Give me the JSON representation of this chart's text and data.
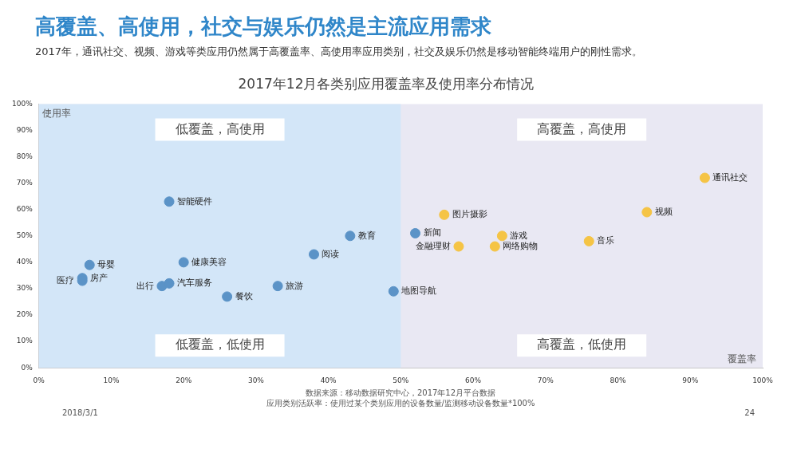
{
  "chart_data": {
    "type": "scatter",
    "title": "高覆盖、高使用，社交与娱乐仍然是主流应用需求",
    "subtitle": "2017年，通讯社交、视频、游戏等类应用仍然属于高覆盖率、高使用率应用类别，社交及娱乐仍然是移动智能终端用户的刚性需求。",
    "xlabel": "覆盖率",
    "ylabel": "使用率",
    "marker": "circle",
    "grid": false,
    "legend": false,
    "xlim": [
      0,
      100
    ],
    "ylim": [
      0,
      100
    ],
    "xticks": [
      {
        "value": 0,
        "label": "0%"
      },
      {
        "value": 10,
        "label": "10%"
      },
      {
        "value": 20,
        "label": "20%"
      },
      {
        "value": 30,
        "label": "30%"
      },
      {
        "value": 40,
        "label": "40%"
      },
      {
        "value": 50,
        "label": "50%"
      },
      {
        "value": 60,
        "label": "60%"
      },
      {
        "value": 70,
        "label": "70%"
      },
      {
        "value": 80,
        "label": "80%"
      },
      {
        "value": 90,
        "label": "90%"
      },
      {
        "value": 100,
        "label": "100%"
      }
    ],
    "yticks": [
      {
        "value": 0,
        "label": "0%"
      },
      {
        "value": 10,
        "label": "10%"
      },
      {
        "value": 20,
        "label": "20%"
      },
      {
        "value": 30,
        "label": "30%"
      },
      {
        "value": 40,
        "label": "40%"
      },
      {
        "value": 50,
        "label": "50%"
      },
      {
        "value": 60,
        "label": "60%"
      },
      {
        "value": 70,
        "label": "70%"
      },
      {
        "value": 80,
        "label": "80%"
      },
      {
        "value": 90,
        "label": "90%"
      },
      {
        "value": 100,
        "label": "100%"
      }
    ],
    "bands": [
      {
        "axis": "x",
        "from": 0,
        "to": 50,
        "color": "#d3e6f8"
      }
    ],
    "series": [
      {
        "color": "#5b93c7",
        "x": [
          18,
          7,
          6,
          6,
          17,
          18,
          20,
          26,
          33,
          38,
          43,
          52,
          49
        ],
        "values": [
          63,
          39,
          34,
          33,
          31,
          32,
          40,
          27,
          31,
          43,
          50,
          51,
          29
        ]
      },
      {
        "color": "#f5c445",
        "x": [
          56,
          58,
          63,
          64,
          76,
          84,
          92
        ],
        "values": [
          58,
          46,
          46,
          50,
          48,
          59,
          72
        ]
      }
    ],
    "annotations": [
      "2017年12月各类别应用覆盖率及使用率分布情况",
      "低覆盖，高使用",
      "高覆盖，高使用",
      "低覆盖，低使用",
      "高覆盖，低使用",
      {
        "text": "智能硬件",
        "x": 18,
        "y": 63
      },
      {
        "text": "母婴",
        "x": 7,
        "y": 39
      },
      {
        "text": "房产",
        "x": 6,
        "y": 34
      },
      {
        "text": "医疗",
        "x": 6,
        "y": 33
      },
      {
        "text": "出行",
        "x": 17,
        "y": 31
      },
      {
        "text": "汽车服务",
        "x": 18,
        "y": 32
      },
      {
        "text": "健康美容",
        "x": 20,
        "y": 40
      },
      {
        "text": "餐饮",
        "x": 26,
        "y": 27
      },
      {
        "text": "旅游",
        "x": 33,
        "y": 31
      },
      {
        "text": "阅读",
        "x": 38,
        "y": 43
      },
      {
        "text": "教育",
        "x": 43,
        "y": 50
      },
      {
        "text": "新闻",
        "x": 52,
        "y": 51
      },
      {
        "text": "地图导航",
        "x": 49,
        "y": 29
      },
      {
        "text": "图片摄影",
        "x": 56,
        "y": 58
      },
      {
        "text": "金融理财",
        "x": 58,
        "y": 46
      },
      {
        "text": "网络购物",
        "x": 63,
        "y": 46
      },
      {
        "text": "游戏",
        "x": 64,
        "y": 50
      },
      {
        "text": "音乐",
        "x": 76,
        "y": 48
      },
      {
        "text": "视频",
        "x": 84,
        "y": 59
      },
      {
        "text": "通讯社交",
        "x": 92,
        "y": 72
      },
      "数据来源：移动数据研究中心，2017年12月平台数据",
      "应用类别活跃率：使用过某个类别应用的设备数量/监测移动设备数量*100%",
      "2018/3/1",
      "24"
    ]
  }
}
